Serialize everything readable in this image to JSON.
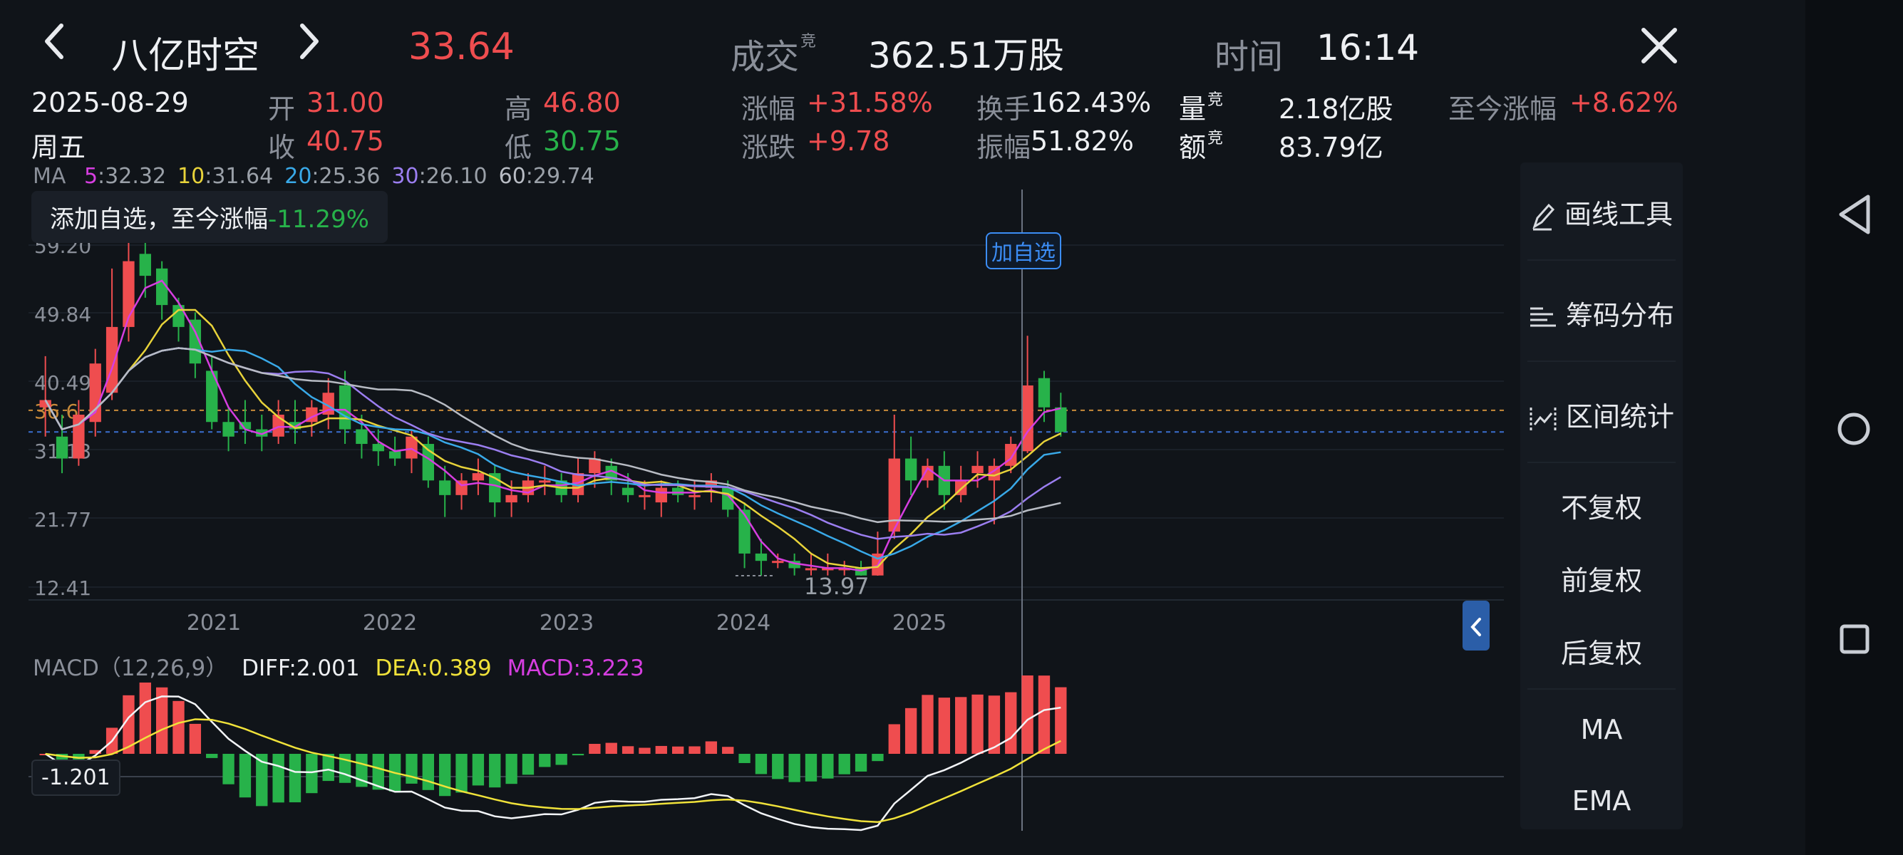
{
  "header": {
    "back_icon": "chevron-left-icon",
    "forward_icon": "chevron-right-icon",
    "close_icon": "close-icon",
    "stock_name": "八亿时空",
    "price": "33.64",
    "volume_label": "成交",
    "volume_sup": "竞",
    "volume_value": "362.51万股",
    "time_label": "时间",
    "time_value": "16:14"
  },
  "quote": {
    "date": "2025-08-29",
    "weekday": "周五",
    "open_label": "开",
    "open": "31.00",
    "close_label": "收",
    "close": "40.75",
    "high_label": "高",
    "high": "46.80",
    "low_label": "低",
    "low": "30.75",
    "pct_label": "涨幅",
    "pct": "+31.58%",
    "chg_label": "涨跌",
    "chg": "+9.78",
    "turnover_label": "换手",
    "turnover": "162.43%",
    "amplitude_label": "振幅",
    "amplitude": "51.82%",
    "vol_label": "量",
    "vol_sup": "竞",
    "vol": "2.18亿股",
    "amount_label": "额",
    "amount_sup": "竞",
    "amount": "83.79亿",
    "since_label": "至今涨幅",
    "since": "+8.62%"
  },
  "ma_legend": {
    "label": "MA",
    "items": [
      {
        "key": "5",
        "value": ":32.32",
        "color": "#d63ee0"
      },
      {
        "key": "10",
        "value": ":31.64",
        "color": "#e8d33a"
      },
      {
        "key": "20",
        "value": ":25.36",
        "color": "#39a9e8"
      },
      {
        "key": "30",
        "value": ":26.10",
        "color": "#9b7ef0"
      },
      {
        "key": "60",
        "value": ":29.74",
        "color": "#b8bcc4"
      }
    ]
  },
  "tooltip": {
    "text": "添加自选，至今涨幅",
    "value": "-11.29%"
  },
  "add_watch_tag": "加自选",
  "y_axis": [
    "59.20",
    "49.84",
    "40.49",
    "36.6",
    "31.13",
    "21.77",
    "12.41"
  ],
  "x_axis": [
    "2021",
    "2022",
    "2023",
    "2024",
    "2025"
  ],
  "low_marker": "13.97",
  "macd_legend": {
    "label": "MACD（12,26,9）",
    "diff": "DIFF:2.001",
    "dea": "DEA:0.389",
    "macd": "MACD:3.223"
  },
  "macd_axis_value": "-1.201",
  "panel": {
    "draw_tool": "画线工具",
    "chip_dist": "筹码分布",
    "range_stats": "区间统计",
    "no_adjust": "不复权",
    "forward_adjust": "前复权",
    "backward_adjust": "后复权",
    "ma": "MA",
    "ema": "EMA"
  },
  "colors": {
    "up": "#ef4d4f",
    "down": "#27b24a",
    "accent": "#3c8df5",
    "background": "#101419"
  },
  "chart_data": {
    "type": "candlestick",
    "x": [
      "2020-07",
      "2020-08",
      "2020-09",
      "2020-10",
      "2020-11",
      "2020-12",
      "2021-01",
      "2021-02",
      "2021-03",
      "2021-04",
      "2021-05",
      "2021-06",
      "2021-07",
      "2021-08",
      "2021-09",
      "2021-10",
      "2021-11",
      "2021-12",
      "2022-01",
      "2022-02",
      "2022-03",
      "2022-04",
      "2022-05",
      "2022-06",
      "2022-07",
      "2022-08",
      "2022-09",
      "2022-10",
      "2022-11",
      "2022-12",
      "2023-01",
      "2023-02",
      "2023-03",
      "2023-04",
      "2023-05",
      "2023-06",
      "2023-07",
      "2023-08",
      "2023-09",
      "2023-10",
      "2023-11",
      "2023-12",
      "2024-01",
      "2024-02",
      "2024-03",
      "2024-04",
      "2024-05",
      "2024-06",
      "2024-07",
      "2024-08",
      "2024-09",
      "2024-10",
      "2024-11",
      "2024-12",
      "2025-01",
      "2025-02",
      "2025-03",
      "2025-04",
      "2025-05",
      "2025-06",
      "2025-07",
      "2025-08"
    ],
    "open": [
      37,
      33,
      30,
      35,
      39,
      48,
      58,
      56,
      51,
      49,
      42,
      35,
      35,
      34,
      33,
      35,
      35,
      36,
      40,
      34,
      32,
      31,
      30,
      32,
      27,
      25,
      27,
      28,
      24,
      25,
      27,
      27,
      25,
      28,
      29,
      26,
      25,
      24,
      26,
      25,
      26,
      26,
      23,
      17,
      16,
      16,
      15,
      15,
      15,
      15,
      14,
      20,
      30,
      27,
      29,
      25,
      28,
      27,
      29,
      31,
      41,
      37
    ],
    "close": [
      38,
      30,
      36,
      43,
      48,
      57,
      55,
      51,
      48,
      43,
      35,
      33,
      34,
      33,
      36,
      34,
      37,
      39,
      34,
      32,
      31,
      30,
      33,
      27,
      25,
      27,
      28,
      24,
      25,
      27,
      27,
      25,
      28,
      30,
      27,
      25,
      25,
      26,
      25,
      25,
      27,
      23,
      17,
      16,
      16,
      15,
      15,
      15,
      15,
      14,
      17,
      30,
      27,
      29,
      25,
      27,
      29,
      29,
      32,
      40,
      37,
      33.64
    ],
    "high": [
      44,
      36,
      38,
      45,
      56,
      62,
      60,
      57,
      52,
      50,
      44,
      37,
      38,
      36,
      38,
      38,
      38,
      41,
      42,
      36,
      34,
      33,
      34,
      33,
      29,
      28,
      30,
      29,
      27,
      28,
      29,
      28,
      30,
      31,
      30,
      28,
      27,
      27,
      27,
      27,
      28,
      27,
      24,
      19,
      17,
      17,
      17,
      17,
      16,
      16,
      20,
      36,
      33,
      30,
      31,
      29,
      31,
      30,
      33,
      46.8,
      42,
      39
    ],
    "low": [
      33,
      28,
      29,
      33,
      38,
      46,
      52,
      49,
      46,
      41,
      34,
      31,
      32,
      31,
      32,
      32,
      33,
      34,
      32,
      30,
      29,
      29,
      28,
      26,
      22,
      23,
      25,
      22,
      22,
      24,
      25,
      24,
      24,
      26,
      25,
      24,
      23,
      22,
      24,
      23,
      24,
      22,
      15,
      13.97,
      15,
      14,
      14,
      14,
      14,
      13.97,
      13.97,
      19,
      25,
      26,
      23,
      24,
      26,
      21,
      28,
      30.75,
      35,
      33
    ]
  }
}
